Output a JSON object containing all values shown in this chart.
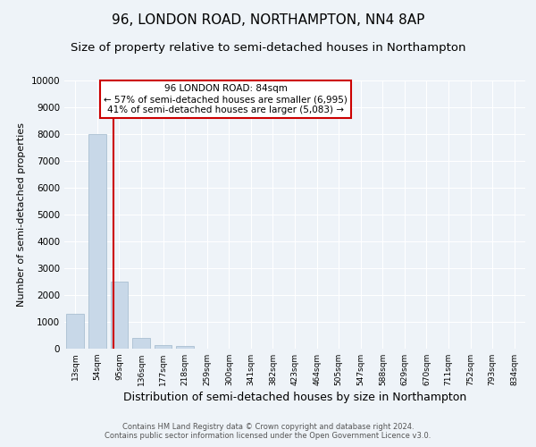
{
  "title": "96, LONDON ROAD, NORTHAMPTON, NN4 8AP",
  "subtitle": "Size of property relative to semi-detached houses in Northampton",
  "xlabel": "Distribution of semi-detached houses by size in Northampton",
  "ylabel": "Number of semi-detached properties",
  "footer_line1": "Contains HM Land Registry data © Crown copyright and database right 2024.",
  "footer_line2": "Contains public sector information licensed under the Open Government Licence v3.0.",
  "categories": [
    "13sqm",
    "54sqm",
    "95sqm",
    "136sqm",
    "177sqm",
    "218sqm",
    "259sqm",
    "300sqm",
    "341sqm",
    "382sqm",
    "423sqm",
    "464sqm",
    "505sqm",
    "547sqm",
    "588sqm",
    "629sqm",
    "670sqm",
    "711sqm",
    "752sqm",
    "793sqm",
    "834sqm"
  ],
  "values": [
    1300,
    8000,
    2500,
    400,
    125,
    100,
    0,
    0,
    0,
    0,
    0,
    0,
    0,
    0,
    0,
    0,
    0,
    0,
    0,
    0,
    0
  ],
  "bar_color": "#c8d8e8",
  "bar_edge_color": "#a0b8cc",
  "annotation_line1": "96 LONDON ROAD: 84sqm",
  "annotation_line2": "← 57% of semi-detached houses are smaller (6,995)",
  "annotation_line3": "41% of semi-detached houses are larger (5,083) →",
  "annotation_box_color": "#ffffff",
  "annotation_box_edge": "#cc0000",
  "vline_color": "#cc0000",
  "ylim": [
    0,
    10000
  ],
  "yticks": [
    0,
    1000,
    2000,
    3000,
    4000,
    5000,
    6000,
    7000,
    8000,
    9000,
    10000
  ],
  "background_color": "#eef3f8",
  "plot_background": "#eef3f8",
  "grid_color": "#ffffff",
  "title_fontsize": 11,
  "subtitle_fontsize": 9.5,
  "xlabel_fontsize": 9,
  "ylabel_fontsize": 8,
  "annotation_fontsize": 7.5,
  "footer_fontsize": 6
}
